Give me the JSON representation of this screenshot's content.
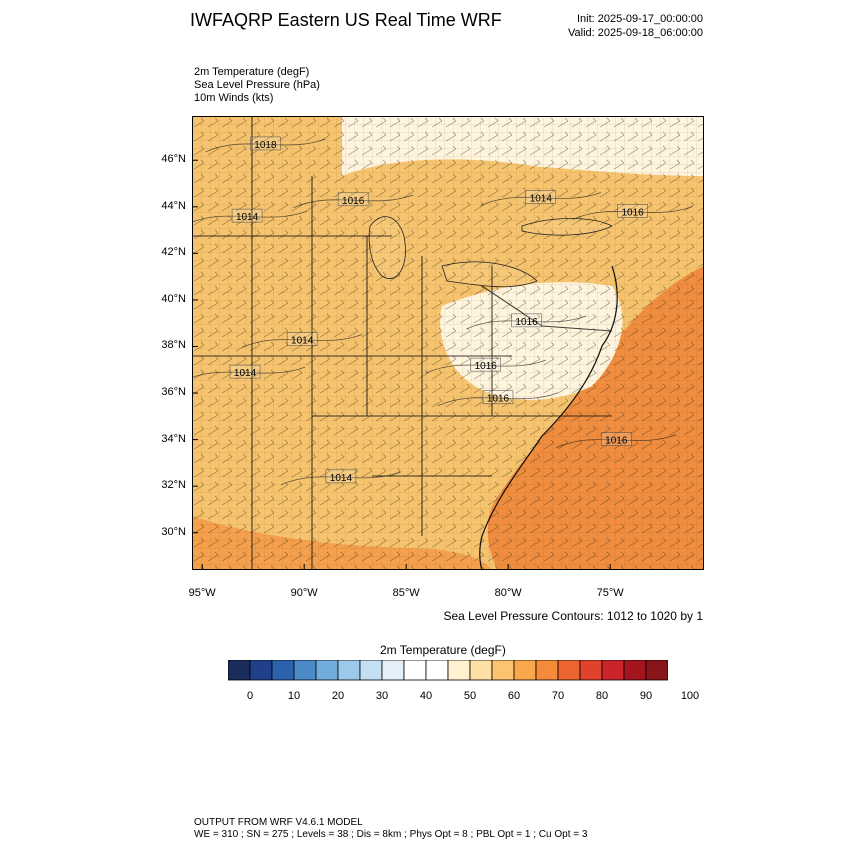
{
  "header": {
    "title": "IWFAQRP Eastern US Real Time WRF",
    "init": "Init: 2025-09-17_00:00:00",
    "valid": "Valid: 2025-09-18_06:00:00"
  },
  "fields": [
    "2m Temperature   (degF)",
    "Sea Level Pressure   (hPa)",
    "10m Winds   (kts)"
  ],
  "map": {
    "lat_labels": [
      "46°N",
      "44°N",
      "42°N",
      "40°N",
      "38°N",
      "36°N",
      "34°N",
      "32°N",
      "30°N"
    ],
    "lon_labels": [
      "95°W",
      "90°W",
      "85°W",
      "80°W",
      "75°W"
    ],
    "lat_range": [
      28.4,
      47.9
    ],
    "lon_range": [
      -95.5,
      -70.4
    ],
    "contour_labels": [
      {
        "text": "1018",
        "lat": 46.7,
        "lon": -91.9
      },
      {
        "text": "1016",
        "lat": 44.3,
        "lon": -87.6
      },
      {
        "text": "1014",
        "lat": 43.6,
        "lon": -92.8
      },
      {
        "text": "1014",
        "lat": 44.4,
        "lon": -78.4
      },
      {
        "text": "1016",
        "lat": 43.8,
        "lon": -73.9
      },
      {
        "text": "1016",
        "lat": 39.1,
        "lon": -79.1
      },
      {
        "text": "1014",
        "lat": 38.3,
        "lon": -90.1
      },
      {
        "text": "1016",
        "lat": 37.2,
        "lon": -81.1
      },
      {
        "text": "1014",
        "lat": 36.9,
        "lon": -92.9
      },
      {
        "text": "1016",
        "lat": 35.8,
        "lon": -80.5
      },
      {
        "text": "1016",
        "lat": 34.0,
        "lon": -74.7
      },
      {
        "text": "1014",
        "lat": 32.4,
        "lon": -88.2
      }
    ],
    "land_color": "#f6c46e",
    "ocean_warm_color": "#f08d3f",
    "cool_region_color": "#fff4dd"
  },
  "contour_note": "Sea Level Pressure Contours: 1012 to 1020 by 1",
  "colorbar": {
    "title": "2m Temperature  (degF)",
    "colors": [
      "#1a2c5c",
      "#20418a",
      "#2c62ad",
      "#4c8ac8",
      "#72acdc",
      "#9cc9ea",
      "#c3e0f3",
      "#e3f0fa",
      "#ffffff",
      "#ffffff",
      "#fff1d0",
      "#fde0a3",
      "#fcc46e",
      "#f9a74b",
      "#f48a3a",
      "#ec6530",
      "#e0422b",
      "#c9252a",
      "#a4151e",
      "#881519"
    ],
    "labels": [
      "0",
      "10",
      "20",
      "30",
      "40",
      "50",
      "60",
      "70",
      "80",
      "90",
      "100"
    ]
  },
  "footer": {
    "line1": "OUTPUT FROM WRF V4.6.1 MODEL",
    "line2": "WE = 310 ; SN = 275 ; Levels = 38 ; Dis = 8km ; Phys Opt = 8 ; PBL Opt = 1 ; Cu Opt = 3"
  }
}
